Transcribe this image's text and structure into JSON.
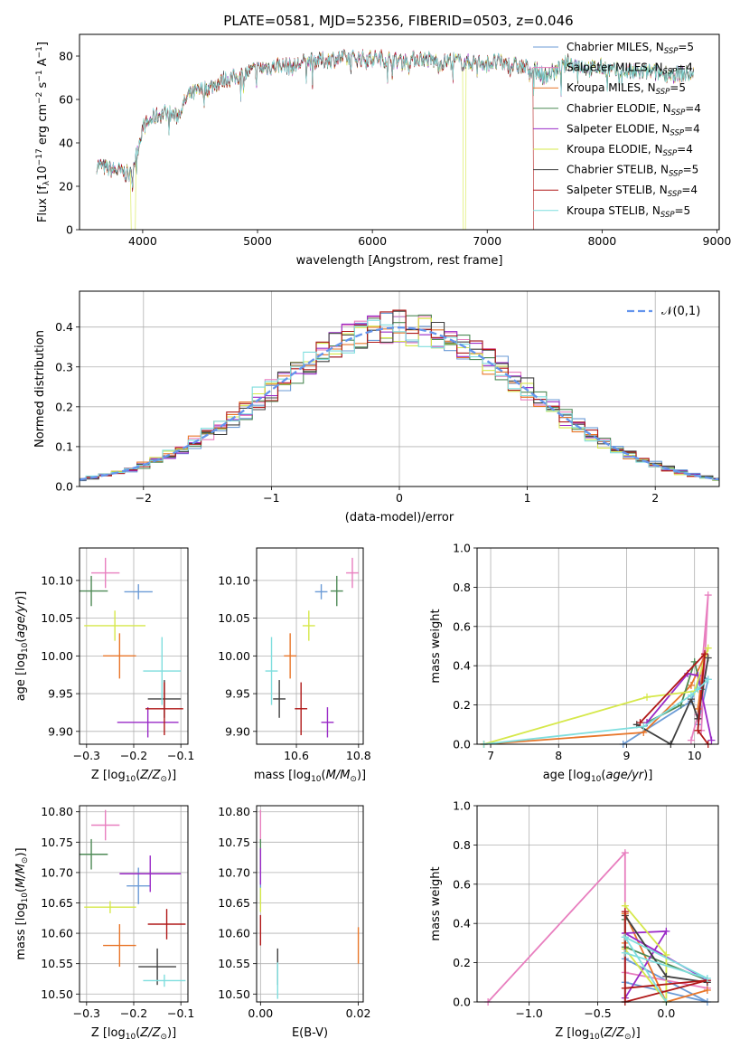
{
  "figure_title": "PLATE=0581, MJD=52356, FIBERID=0503, z=0.046",
  "colors": {
    "Chabrier MILES": "#6b9bd6",
    "Salpeter MILES": "#e87fbf",
    "Kroupa MILES": "#e8762a",
    "Chabrier ELODIE": "#4e8a56",
    "Salpeter ELODIE": "#9a2ac7",
    "Kroupa ELODIE": "#d6e84a",
    "Chabrier STELIB": "#404040",
    "Salpeter STELIB": "#b01818",
    "Kroupa STELIB": "#7fdede",
    "normal_curve": "#6495ed"
  },
  "chart_data": [
    {
      "id": "spectrum",
      "type": "line",
      "title": "PLATE=0581, MJD=52356, FIBERID=0503, z=0.046",
      "xlabel": "wavelength [Angstrom, rest frame]",
      "ylabel": "Flux [f_λ10^-17 erg cm^-2 s^-1 A^-1]",
      "xlim": [
        3450,
        9020
      ],
      "ylim": [
        0,
        90
      ],
      "xticks": [
        4000,
        5000,
        6000,
        7000,
        8000,
        9000
      ],
      "yticks": [
        0,
        20,
        40,
        60,
        80
      ],
      "grid": false,
      "legend_position": "top-right",
      "series": [
        {
          "name": "Chabrier MILES, N_SSP=5"
        },
        {
          "name": "Salpeter MILES, N_SSP=4"
        },
        {
          "name": "Kroupa MILES, N_SSP=5"
        },
        {
          "name": "Chabrier ELODIE, N_SSP=4"
        },
        {
          "name": "Salpeter ELODIE, N_SSP=4"
        },
        {
          "name": "Kroupa ELODIE, N_SSP=4"
        },
        {
          "name": "Chabrier STELIB, N_SSP=5"
        },
        {
          "name": "Salpeter STELIB, N_SSP=4"
        },
        {
          "name": "Kroupa STELIB, N_SSP=5"
        }
      ],
      "continuum": {
        "x": [
          3600,
          3700,
          3800,
          3900,
          4000,
          4100,
          4200,
          4300,
          4400,
          4500,
          4600,
          4700,
          4800,
          4900,
          5000,
          5100,
          5200,
          5300,
          5400,
          5500,
          5600,
          5700,
          5800,
          5900,
          6000,
          6100,
          6200,
          6300,
          6400,
          6500,
          6600,
          6700,
          6800,
          6900,
          7000,
          7100,
          7200,
          7300,
          7400,
          7500,
          7600,
          7700,
          7800,
          7900,
          8000,
          8100,
          8200,
          8300,
          8400,
          8500,
          8600,
          8700,
          8800
        ],
        "y": [
          30,
          28,
          27,
          25,
          47,
          52,
          54,
          52,
          62,
          64,
          66,
          69,
          70,
          72,
          74,
          75,
          76,
          75,
          77,
          78,
          78,
          79,
          79,
          79,
          79,
          79,
          78,
          78,
          79,
          78,
          77,
          78,
          77,
          77,
          77,
          77,
          76,
          75,
          74,
          71,
          73,
          77,
          76,
          74,
          75,
          73,
          73,
          72,
          73,
          72,
          72,
          72,
          71
        ]
      },
      "dropouts": [
        {
          "series": "Kroupa ELODIE, N_SSP=4",
          "x_from": 3900,
          "x_to": 3940
        },
        {
          "series": "Kroupa ELODIE, N_SSP=4",
          "x_from": 6790,
          "x_to": 6810
        },
        {
          "series": "Salpeter STELIB, N_SSP=4",
          "x_from": 7400,
          "x_to": 9000
        }
      ]
    },
    {
      "id": "residual_histogram",
      "type": "line",
      "xlabel": "(data-model)/error",
      "ylabel": "Normed distribution",
      "xlim": [
        -2.5,
        2.5
      ],
      "ylim": [
        0,
        0.49
      ],
      "xticks": [
        -2,
        -1,
        0,
        1,
        2
      ],
      "yticks": [
        0.0,
        0.1,
        0.2,
        0.3,
        0.4
      ],
      "grid": true,
      "legend_position": "top-right",
      "legend": [
        "𝒩(0,1)"
      ],
      "bin_width": 0.1
    },
    {
      "id": "age_vs_Z",
      "type": "scatter",
      "xlabel": "Z [log10(Z/Z_sun)]",
      "ylabel": "age  [log10(age/yr)]",
      "xlim": [
        -0.315,
        -0.085
      ],
      "ylim": [
        9.883,
        10.143
      ],
      "xticks": [
        -0.3,
        -0.2,
        -0.1
      ],
      "yticks": [
        9.9,
        9.95,
        10.0,
        10.05,
        10.1
      ],
      "grid": true,
      "points": [
        {
          "series": "Chabrier MILES",
          "x": -0.19,
          "y": 10.085,
          "xerr": 0.03,
          "yerr": 0.01
        },
        {
          "series": "Salpeter MILES",
          "x": -0.26,
          "y": 10.11,
          "xerr": 0.03,
          "yerr": 0.02
        },
        {
          "series": "Kroupa MILES",
          "x": -0.23,
          "y": 10.0,
          "xerr": 0.035,
          "yerr": 0.03
        },
        {
          "series": "Chabrier ELODIE",
          "x": -0.29,
          "y": 10.086,
          "xerr": 0.035,
          "yerr": 0.02
        },
        {
          "series": "Salpeter ELODIE",
          "x": -0.17,
          "y": 9.912,
          "xerr": 0.065,
          "yerr": 0.02
        },
        {
          "series": "Kroupa ELODIE",
          "x": -0.24,
          "y": 10.04,
          "xerr": 0.065,
          "yerr": 0.02
        },
        {
          "series": "Chabrier STELIB",
          "x": -0.135,
          "y": 9.943,
          "xerr": 0.035,
          "yerr": 0.025
        },
        {
          "series": "Salpeter STELIB",
          "x": -0.135,
          "y": 9.93,
          "xerr": 0.04,
          "yerr": 0.035
        },
        {
          "series": "Kroupa STELIB",
          "x": -0.14,
          "y": 9.98,
          "xerr": 0.04,
          "yerr": 0.045
        }
      ]
    },
    {
      "id": "age_vs_mass",
      "type": "scatter",
      "xlabel": "mass [log10(M/M_sun)]",
      "ylabel": "",
      "xlim": [
        10.472,
        10.815
      ],
      "ylim": [
        9.883,
        10.143
      ],
      "xticks": [
        10.6,
        10.8
      ],
      "yticks": [
        9.9,
        9.95,
        10.0,
        10.05,
        10.1
      ],
      "grid": true,
      "points": [
        {
          "series": "Chabrier MILES",
          "x": 10.68,
          "y": 10.085,
          "xerr": 0.02,
          "yerr": 0.01
        },
        {
          "series": "Salpeter MILES",
          "x": 10.78,
          "y": 10.11,
          "xerr": 0.02,
          "yerr": 0.02
        },
        {
          "series": "Kroupa MILES",
          "x": 10.58,
          "y": 10.0,
          "xerr": 0.02,
          "yerr": 0.03
        },
        {
          "series": "Chabrier ELODIE",
          "x": 10.73,
          "y": 10.086,
          "xerr": 0.02,
          "yerr": 0.02
        },
        {
          "series": "Salpeter ELODIE",
          "x": 10.7,
          "y": 9.912,
          "xerr": 0.02,
          "yerr": 0.02
        },
        {
          "series": "Kroupa ELODIE",
          "x": 10.64,
          "y": 10.04,
          "xerr": 0.02,
          "yerr": 0.02
        },
        {
          "series": "Chabrier STELIB",
          "x": 10.545,
          "y": 9.943,
          "xerr": 0.02,
          "yerr": 0.025
        },
        {
          "series": "Salpeter STELIB",
          "x": 10.615,
          "y": 9.93,
          "xerr": 0.02,
          "yerr": 0.035
        },
        {
          "series": "Kroupa STELIB",
          "x": 10.52,
          "y": 9.98,
          "xerr": 0.02,
          "yerr": 0.045
        }
      ]
    },
    {
      "id": "mass_weight_vs_age",
      "type": "line",
      "xlabel": "age  [log10(age/yr)]",
      "ylabel": "mass weight",
      "xlim": [
        6.8,
        10.35
      ],
      "ylim": [
        0,
        1
      ],
      "xticks": [
        7,
        8,
        9,
        10
      ],
      "yticks": [
        0.0,
        0.2,
        0.4,
        0.6,
        0.8,
        1.0
      ],
      "grid": true,
      "series": [
        {
          "name": "Chabrier MILES",
          "x": [
            8.95,
            9.95,
            10.1,
            10.2,
            10.05
          ],
          "y": [
            0.0,
            0.22,
            0.35,
            0.33,
            0.1
          ]
        },
        {
          "name": "Salpeter MILES",
          "x": [
            9.95,
            10.05,
            10.2,
            10.1
          ],
          "y": [
            0.02,
            0.15,
            0.76,
            0.07
          ]
        },
        {
          "name": "Kroupa MILES",
          "x": [
            6.9,
            9.25,
            9.95,
            10.15,
            10.05
          ],
          "y": [
            0.0,
            0.06,
            0.3,
            0.45,
            0.18
          ]
        },
        {
          "name": "Chabrier ELODIE",
          "x": [
            9.3,
            9.8,
            10.0,
            10.1
          ],
          "y": [
            0.11,
            0.2,
            0.42,
            0.28
          ]
        },
        {
          "name": "Salpeter ELODIE",
          "x": [
            9.3,
            9.9,
            10.05,
            10.25
          ],
          "y": [
            0.11,
            0.36,
            0.35,
            0.02
          ]
        },
        {
          "name": "Kroupa ELODIE",
          "x": [
            6.9,
            9.3,
            10.0,
            10.2
          ],
          "y": [
            0.0,
            0.24,
            0.27,
            0.49
          ]
        },
        {
          "name": "Chabrier STELIB",
          "x": [
            9.15,
            9.65,
            9.95,
            10.05,
            10.2
          ],
          "y": [
            0.1,
            0.0,
            0.23,
            0.13,
            0.44
          ]
        },
        {
          "name": "Salpeter STELIB",
          "x": [
            9.2,
            10.15,
            10.05,
            10.2
          ],
          "y": [
            0.11,
            0.46,
            0.07,
            0.0
          ]
        },
        {
          "name": "Kroupa STELIB",
          "x": [
            6.9,
            9.25,
            9.95,
            10.05,
            10.2
          ],
          "y": [
            0.0,
            0.09,
            0.25,
            0.28,
            0.33
          ]
        }
      ]
    },
    {
      "id": "mass_vs_Z",
      "type": "scatter",
      "xlabel": "Z [log10(Z/Z_sun)]",
      "ylabel": "mass [log10(M/M_sun)]",
      "xlim": [
        -0.315,
        -0.085
      ],
      "ylim": [
        10.487,
        10.81
      ],
      "xticks": [
        -0.3,
        -0.2,
        -0.1
      ],
      "yticks": [
        10.5,
        10.55,
        10.6,
        10.65,
        10.7,
        10.75,
        10.8
      ],
      "grid": true,
      "points": [
        {
          "series": "Chabrier MILES",
          "x": -0.19,
          "y": 10.678,
          "xerr": 0.025,
          "yerr": 0.03
        },
        {
          "series": "Salpeter MILES",
          "x": -0.26,
          "y": 10.778,
          "xerr": 0.03,
          "yerr": 0.025
        },
        {
          "series": "Kroupa MILES",
          "x": -0.23,
          "y": 10.58,
          "xerr": 0.035,
          "yerr": 0.035
        },
        {
          "series": "Chabrier ELODIE",
          "x": -0.29,
          "y": 10.73,
          "xerr": 0.035,
          "yerr": 0.025
        },
        {
          "series": "Salpeter ELODIE",
          "x": -0.165,
          "y": 10.698,
          "xerr": 0.065,
          "yerr": 0.03
        },
        {
          "series": "Kroupa ELODIE",
          "x": -0.25,
          "y": 10.643,
          "xerr": 0.055,
          "yerr": 0.01
        },
        {
          "series": "Chabrier STELIB",
          "x": -0.15,
          "y": 10.545,
          "xerr": 0.04,
          "yerr": 0.03
        },
        {
          "series": "Salpeter STELIB",
          "x": -0.13,
          "y": 10.615,
          "xerr": 0.04,
          "yerr": 0.025
        },
        {
          "series": "Kroupa STELIB",
          "x": -0.135,
          "y": 10.522,
          "xerr": 0.045,
          "yerr": 0.01
        }
      ]
    },
    {
      "id": "mass_vs_EBV",
      "type": "scatter",
      "xlabel": "E(B-V)",
      "ylabel": "",
      "xlim": [
        -0.0008,
        0.021
      ],
      "ylim": [
        10.487,
        10.81
      ],
      "xticks": [
        0.0,
        0.02
      ],
      "yticks": [
        10.5,
        10.55,
        10.6,
        10.65,
        10.7,
        10.75,
        10.8
      ],
      "grid": true,
      "points": [
        {
          "series": "Chabrier MILES",
          "x": 0.0,
          "y": 10.678,
          "xerr": 0.0,
          "yerr": 0.03
        },
        {
          "series": "Salpeter MILES",
          "x": 0.0,
          "y": 10.778,
          "xerr": 0.0,
          "yerr": 0.025
        },
        {
          "series": "Kroupa MILES",
          "x": 0.02,
          "y": 10.58,
          "xerr": 0.0,
          "yerr": 0.03
        },
        {
          "series": "Chabrier ELODIE",
          "x": 0.0,
          "y": 10.73,
          "xerr": 0.0,
          "yerr": 0.025
        },
        {
          "series": "Salpeter ELODIE",
          "x": 0.0,
          "y": 10.71,
          "xerr": 0.0,
          "yerr": 0.03
        },
        {
          "series": "Kroupa ELODIE",
          "x": 0.0,
          "y": 10.655,
          "xerr": 0.0,
          "yerr": 0.02
        },
        {
          "series": "Chabrier STELIB",
          "x": 0.0035,
          "y": 10.545,
          "xerr": 0.0,
          "yerr": 0.03
        },
        {
          "series": "Salpeter STELIB",
          "x": 0.0,
          "y": 10.605,
          "xerr": 0.0,
          "yerr": 0.025
        },
        {
          "series": "Kroupa STELIB",
          "x": 0.0035,
          "y": 10.522,
          "xerr": 0.0,
          "yerr": 0.03
        }
      ]
    },
    {
      "id": "mass_weight_vs_Z",
      "type": "line",
      "xlabel": "Z [log10(Z/Z_sun)]",
      "ylabel": "mass weight",
      "xlim": [
        -1.38,
        0.38
      ],
      "ylim": [
        0,
        1
      ],
      "xticks": [
        -1.0,
        -0.5,
        0.0
      ],
      "yticks": [
        0.0,
        0.2,
        0.4,
        0.6,
        0.8,
        1.0
      ],
      "grid": true,
      "series": [
        {
          "name": "Chabrier MILES",
          "x": [
            -0.3,
            -0.3,
            0.3,
            -0.3
          ],
          "y": [
            0.33,
            0.22,
            0.0,
            0.1
          ]
        },
        {
          "name": "Salpeter MILES",
          "x": [
            -1.3,
            -0.3,
            -0.3,
            0.3
          ],
          "y": [
            0.0,
            0.76,
            0.15,
            0.07
          ]
        },
        {
          "name": "Kroupa MILES",
          "x": [
            -0.3,
            -0.3,
            0.0,
            0.3
          ],
          "y": [
            0.3,
            0.45,
            0.0,
            0.06
          ]
        },
        {
          "name": "Chabrier ELODIE",
          "x": [
            -0.3,
            -0.3,
            0.3
          ],
          "y": [
            0.42,
            0.28,
            0.11
          ]
        },
        {
          "name": "Salpeter ELODIE",
          "x": [
            -0.3,
            0.0,
            -0.3,
            0.3
          ],
          "y": [
            0.02,
            0.36,
            0.35,
            0.11
          ]
        },
        {
          "name": "Kroupa ELODIE",
          "x": [
            -0.3,
            0.0,
            0.0,
            -0.3
          ],
          "y": [
            0.49,
            0.24,
            0.0,
            0.27
          ]
        },
        {
          "name": "Chabrier STELIB",
          "x": [
            -0.3,
            -0.3,
            0.0,
            0.3
          ],
          "y": [
            0.0,
            0.44,
            0.13,
            0.1
          ]
        },
        {
          "name": "Salpeter STELIB",
          "x": [
            -0.3,
            -0.3,
            0.3,
            -0.3
          ],
          "y": [
            0.46,
            0.0,
            0.11,
            0.07
          ]
        },
        {
          "name": "Kroupa STELIB",
          "x": [
            -0.3,
            0.3,
            -0.3,
            0.0
          ],
          "y": [
            0.25,
            0.12,
            0.33,
            0.0
          ]
        }
      ]
    }
  ]
}
